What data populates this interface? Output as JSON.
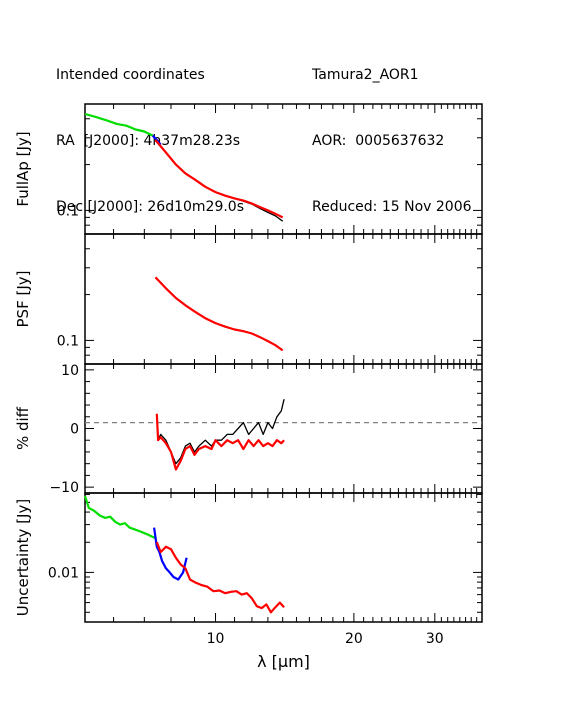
{
  "header": {
    "left": [
      "Intended coordinates",
      "RA  [J2000]: 4h37m28.23s",
      "Dec [J2000]: 26d10m29.0s"
    ],
    "right": [
      "Tamura2_AOR1",
      "AOR:  0005637632",
      "Reduced: 15 Nov 2006"
    ]
  },
  "colors": {
    "sl2": "#00dd00",
    "sl1": "#0000ff",
    "ll": "#ff0000",
    "psf_vs_full": "#000000",
    "ref": "#808080"
  },
  "chart_data": [
    {
      "type": "line",
      "ylabel": "FullAp [Jy]",
      "yscale": "log",
      "xscale": "log",
      "xlim": [
        5.2,
        38
      ],
      "ylim": [
        0.07,
        0.5
      ],
      "yticks": [
        {
          "value": 0.1,
          "label": "0.1"
        }
      ],
      "xticks": [],
      "series": [
        {
          "color": "sl2",
          "x": [
            5.2,
            5.5,
            5.8,
            6.1,
            6.4,
            6.7,
            7.0,
            7.3
          ],
          "y": [
            0.43,
            0.41,
            0.39,
            0.37,
            0.36,
            0.34,
            0.33,
            0.31
          ]
        },
        {
          "color": "sl1",
          "x": [
            7.3,
            7.45,
            7.6
          ],
          "y": [
            0.31,
            0.29,
            0.27
          ]
        },
        {
          "color": "psf_vs_full",
          "x": [
            7.4,
            7.8,
            8.2,
            8.6,
            9.0,
            9.5,
            10,
            10.5,
            11,
            11.5,
            12,
            12.5,
            13,
            13.5,
            14.0
          ],
          "y": [
            0.29,
            0.24,
            0.2,
            0.175,
            0.16,
            0.143,
            0.132,
            0.125,
            0.12,
            0.115,
            0.11,
            0.103,
            0.097,
            0.092,
            0.085
          ]
        },
        {
          "color": "ll",
          "x": [
            7.4,
            7.8,
            8.2,
            8.6,
            9.0,
            9.5,
            10,
            10.5,
            11,
            11.5,
            12,
            12.5,
            13,
            13.5,
            14.0
          ],
          "y": [
            0.29,
            0.24,
            0.2,
            0.175,
            0.16,
            0.143,
            0.132,
            0.125,
            0.12,
            0.116,
            0.111,
            0.105,
            0.1,
            0.095,
            0.09
          ]
        }
      ]
    },
    {
      "type": "line",
      "ylabel": "PSF [Jy]",
      "yscale": "log",
      "xscale": "log",
      "xlim": [
        5.2,
        38
      ],
      "ylim": [
        0.07,
        0.5
      ],
      "yticks": [
        {
          "value": 0.1,
          "label": "0.1"
        }
      ],
      "xticks": [],
      "series": [
        {
          "color": "ll",
          "x": [
            7.4,
            7.8,
            8.2,
            8.6,
            9.0,
            9.5,
            10,
            10.5,
            11,
            11.5,
            12,
            12.5,
            13,
            13.5,
            14.0
          ],
          "y": [
            0.26,
            0.22,
            0.19,
            0.17,
            0.155,
            0.14,
            0.13,
            0.123,
            0.118,
            0.115,
            0.111,
            0.105,
            0.099,
            0.093,
            0.086
          ]
        }
      ]
    },
    {
      "type": "line",
      "ylabel": "% diff",
      "yscale": "linear",
      "xscale": "log",
      "xlim": [
        5.2,
        38
      ],
      "ylim": [
        -11,
        11
      ],
      "yticks": [
        {
          "value": 10,
          "label": "10"
        },
        {
          "value": 0,
          "label": "0"
        },
        {
          "value": -10,
          "label": "−10"
        }
      ],
      "xticks": [],
      "ref_line": 1,
      "series": [
        {
          "color": "psf_vs_full",
          "x": [
            7.45,
            7.5,
            7.6,
            7.8,
            8.0,
            8.2,
            8.4,
            8.6,
            8.8,
            9.0,
            9.2,
            9.5,
            9.8,
            10,
            10.3,
            10.6,
            10.9,
            11.2,
            11.5,
            11.8,
            12.1,
            12.4,
            12.7,
            13,
            13.3,
            13.6,
            13.9,
            14.1
          ],
          "y": [
            2,
            -2,
            -1,
            -2,
            -4,
            -6,
            -5,
            -3,
            -2.5,
            -4,
            -3,
            -2,
            -3,
            -2,
            -2,
            -1,
            -1,
            0,
            1,
            -1,
            0,
            1,
            -1,
            1,
            0,
            2,
            3,
            5
          ]
        },
        {
          "color": "ll",
          "x": [
            7.45,
            7.5,
            7.6,
            7.8,
            8.0,
            8.2,
            8.4,
            8.6,
            8.8,
            9.0,
            9.2,
            9.5,
            9.8,
            10,
            10.3,
            10.6,
            10.9,
            11.2,
            11.5,
            11.8,
            12.1,
            12.4,
            12.7,
            13,
            13.3,
            13.6,
            13.9,
            14.1
          ],
          "y": [
            2.5,
            -2,
            -1.5,
            -2.5,
            -4,
            -7,
            -5.5,
            -3.5,
            -3,
            -4.5,
            -3.5,
            -3,
            -3.5,
            -2,
            -3,
            -2,
            -2.5,
            -2,
            -3.5,
            -2,
            -3,
            -2,
            -3,
            -2.5,
            -3,
            -2,
            -2.5,
            -2
          ]
        }
      ]
    },
    {
      "type": "line",
      "ylabel": "Uncertainty [Jy]",
      "yscale": "log",
      "xscale": "log",
      "xlim": [
        5.2,
        38
      ],
      "ylim": [
        0.0032,
        0.062
      ],
      "yticks": [
        {
          "value": 0.01,
          "label": "0.01"
        }
      ],
      "xticks": [
        {
          "value": 10,
          "label": "10"
        },
        {
          "value": 20,
          "label": "20"
        },
        {
          "value": 30,
          "label": "30"
        }
      ],
      "xlabel": "λ [μm]",
      "series": [
        {
          "color": "sl2",
          "x": [
            5.2,
            5.3,
            5.45,
            5.6,
            5.75,
            5.9,
            6.05,
            6.2,
            6.35,
            6.5,
            6.65,
            6.8,
            6.95,
            7.1,
            7.25,
            7.4
          ],
          "y": [
            0.058,
            0.044,
            0.041,
            0.037,
            0.035,
            0.036,
            0.032,
            0.03,
            0.031,
            0.028,
            0.027,
            0.026,
            0.025,
            0.024,
            0.023,
            0.022
          ]
        },
        {
          "color": "sl1",
          "x": [
            7.35,
            7.45,
            7.55,
            7.65,
            7.8,
            7.95,
            8.1,
            8.3,
            8.5,
            8.65
          ],
          "y": [
            0.028,
            0.018,
            0.016,
            0.013,
            0.011,
            0.01,
            0.009,
            0.0085,
            0.01,
            0.014
          ]
        },
        {
          "color": "ll",
          "x": [
            7.45,
            7.6,
            7.8,
            8.0,
            8.2,
            8.4,
            8.6,
            8.8,
            9.0,
            9.3,
            9.6,
            9.9,
            10.2,
            10.5,
            10.8,
            11.1,
            11.4,
            11.7,
            12.0,
            12.3,
            12.6,
            12.9,
            13.2,
            13.5,
            13.8,
            14.1
          ],
          "y": [
            0.02,
            0.016,
            0.018,
            0.017,
            0.014,
            0.012,
            0.011,
            0.0085,
            0.008,
            0.0075,
            0.0072,
            0.0065,
            0.0066,
            0.0062,
            0.0064,
            0.0065,
            0.006,
            0.0062,
            0.0055,
            0.0046,
            0.0044,
            0.0048,
            0.004,
            0.0045,
            0.005,
            0.0045
          ]
        }
      ]
    }
  ]
}
